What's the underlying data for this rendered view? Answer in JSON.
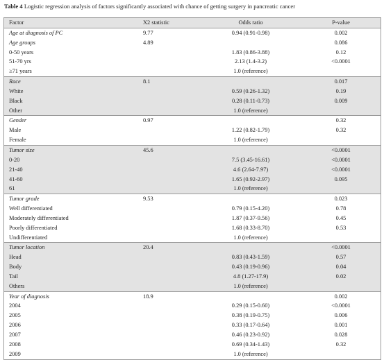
{
  "title": {
    "label": "Table 4",
    "text": "Logistic regression analysis of factors significantly associated with chance of getting surgery in pancreatic cancer"
  },
  "table": {
    "header": [
      "Factor",
      "X2 statistic",
      "Odds ratio",
      "P-value"
    ],
    "groups": [
      {
        "shaded": false,
        "name": "Age at diagnosis of PC",
        "x2": "9.77",
        "odds": "0.94 (0.91-0.98)",
        "p": "0.002",
        "rows": []
      },
      {
        "shaded": false,
        "name": "Age groups",
        "x2": "4.89",
        "p": "0.086",
        "rows": [
          {
            "factor": "0-50 years",
            "odds": "1.83 (0.86-3.88)",
            "p": "0.12"
          },
          {
            "factor": "51-70 yrs",
            "odds": "2.13 (1.4-3.2)",
            "p": "<0.0001"
          },
          {
            "factor": "≥71 years",
            "odds": "1.0 (reference)"
          }
        ]
      },
      {
        "shaded": true,
        "name": "Race",
        "x2": "8.1",
        "p": "0.017",
        "rows": [
          {
            "factor": "White",
            "odds": "0.59 (0.26-1.32)",
            "p": "0.19"
          },
          {
            "factor": "Black",
            "odds": "0.28 (0.11-0.73)",
            "p": "0.009"
          },
          {
            "factor": "Other",
            "odds": "1.0 (reference)"
          }
        ]
      },
      {
        "shaded": false,
        "name": "Gender",
        "x2": "0.97",
        "p": "0.32",
        "rows": [
          {
            "factor": "Male",
            "odds": "1.22 (0.82-1.79)",
            "p": "0.32"
          },
          {
            "factor": "Female",
            "odds": "1.0 (reference)"
          }
        ]
      },
      {
        "shaded": true,
        "name": "Tumor size",
        "x2": "45.6",
        "p": "<0.0001",
        "rows": [
          {
            "factor": "0-20",
            "odds": "7.5 (3.45-16.61)",
            "p": "<0.0001"
          },
          {
            "factor": "21-40",
            "odds": "4.6 (2.64-7.97)",
            "p": "<0.0001"
          },
          {
            "factor": "41-60",
            "odds": "1.65 (0.92-2.97)",
            "p": "0.095"
          },
          {
            "factor": "61",
            "odds": "1.0 (reference)"
          }
        ]
      },
      {
        "shaded": false,
        "name": "Tumor grade",
        "x2": "9.53",
        "p": "0.023",
        "rows": [
          {
            "factor": "Well differentiated",
            "odds": "0.79 (0.15-4.20)",
            "p": "0.78"
          },
          {
            "factor": "Moderately differentiated",
            "odds": "1.87 (0.37-9.56)",
            "p": "0.45"
          },
          {
            "factor": "Poorly differentiated",
            "odds": "1.68 (0.33-8.70)",
            "p": "0.53"
          },
          {
            "factor": "Undifferentiated",
            "odds": "1.0 (reference)"
          }
        ]
      },
      {
        "shaded": true,
        "name": "Tumor location",
        "x2": "20.4",
        "p": "<0.0001",
        "rows": [
          {
            "factor": "Head",
            "odds": "0.83 (0.43-1.59)",
            "p": "0.57"
          },
          {
            "factor": "Body",
            "odds": "0.43 (0.19-0.96)",
            "p": "0.04"
          },
          {
            "factor": "Tail",
            "odds": "4.8 (1.27-17.9)",
            "p": "0.02"
          },
          {
            "factor": "Others",
            "odds": "1.0 (reference)"
          }
        ]
      },
      {
        "shaded": false,
        "name": "Year of diagnosis",
        "x2": "18.9",
        "p": "0.002",
        "rows": [
          {
            "factor": "2004",
            "odds": "0.29 (0.15-0.60)",
            "p": "<0.0001"
          },
          {
            "factor": "2005",
            "odds": "0.38 (0.19-0.75)",
            "p": "0.006"
          },
          {
            "factor": "2006",
            "odds": "0.33 (0.17-0.64)",
            "p": "0.001"
          },
          {
            "factor": "2007",
            "odds": "0.46 (0.23-0.92)",
            "p": "0.028"
          },
          {
            "factor": "2008",
            "odds": "0.69 (0.34-1.43)",
            "p": "0.32"
          },
          {
            "factor": "2009",
            "odds": "1.0 (reference)"
          }
        ]
      }
    ]
  }
}
